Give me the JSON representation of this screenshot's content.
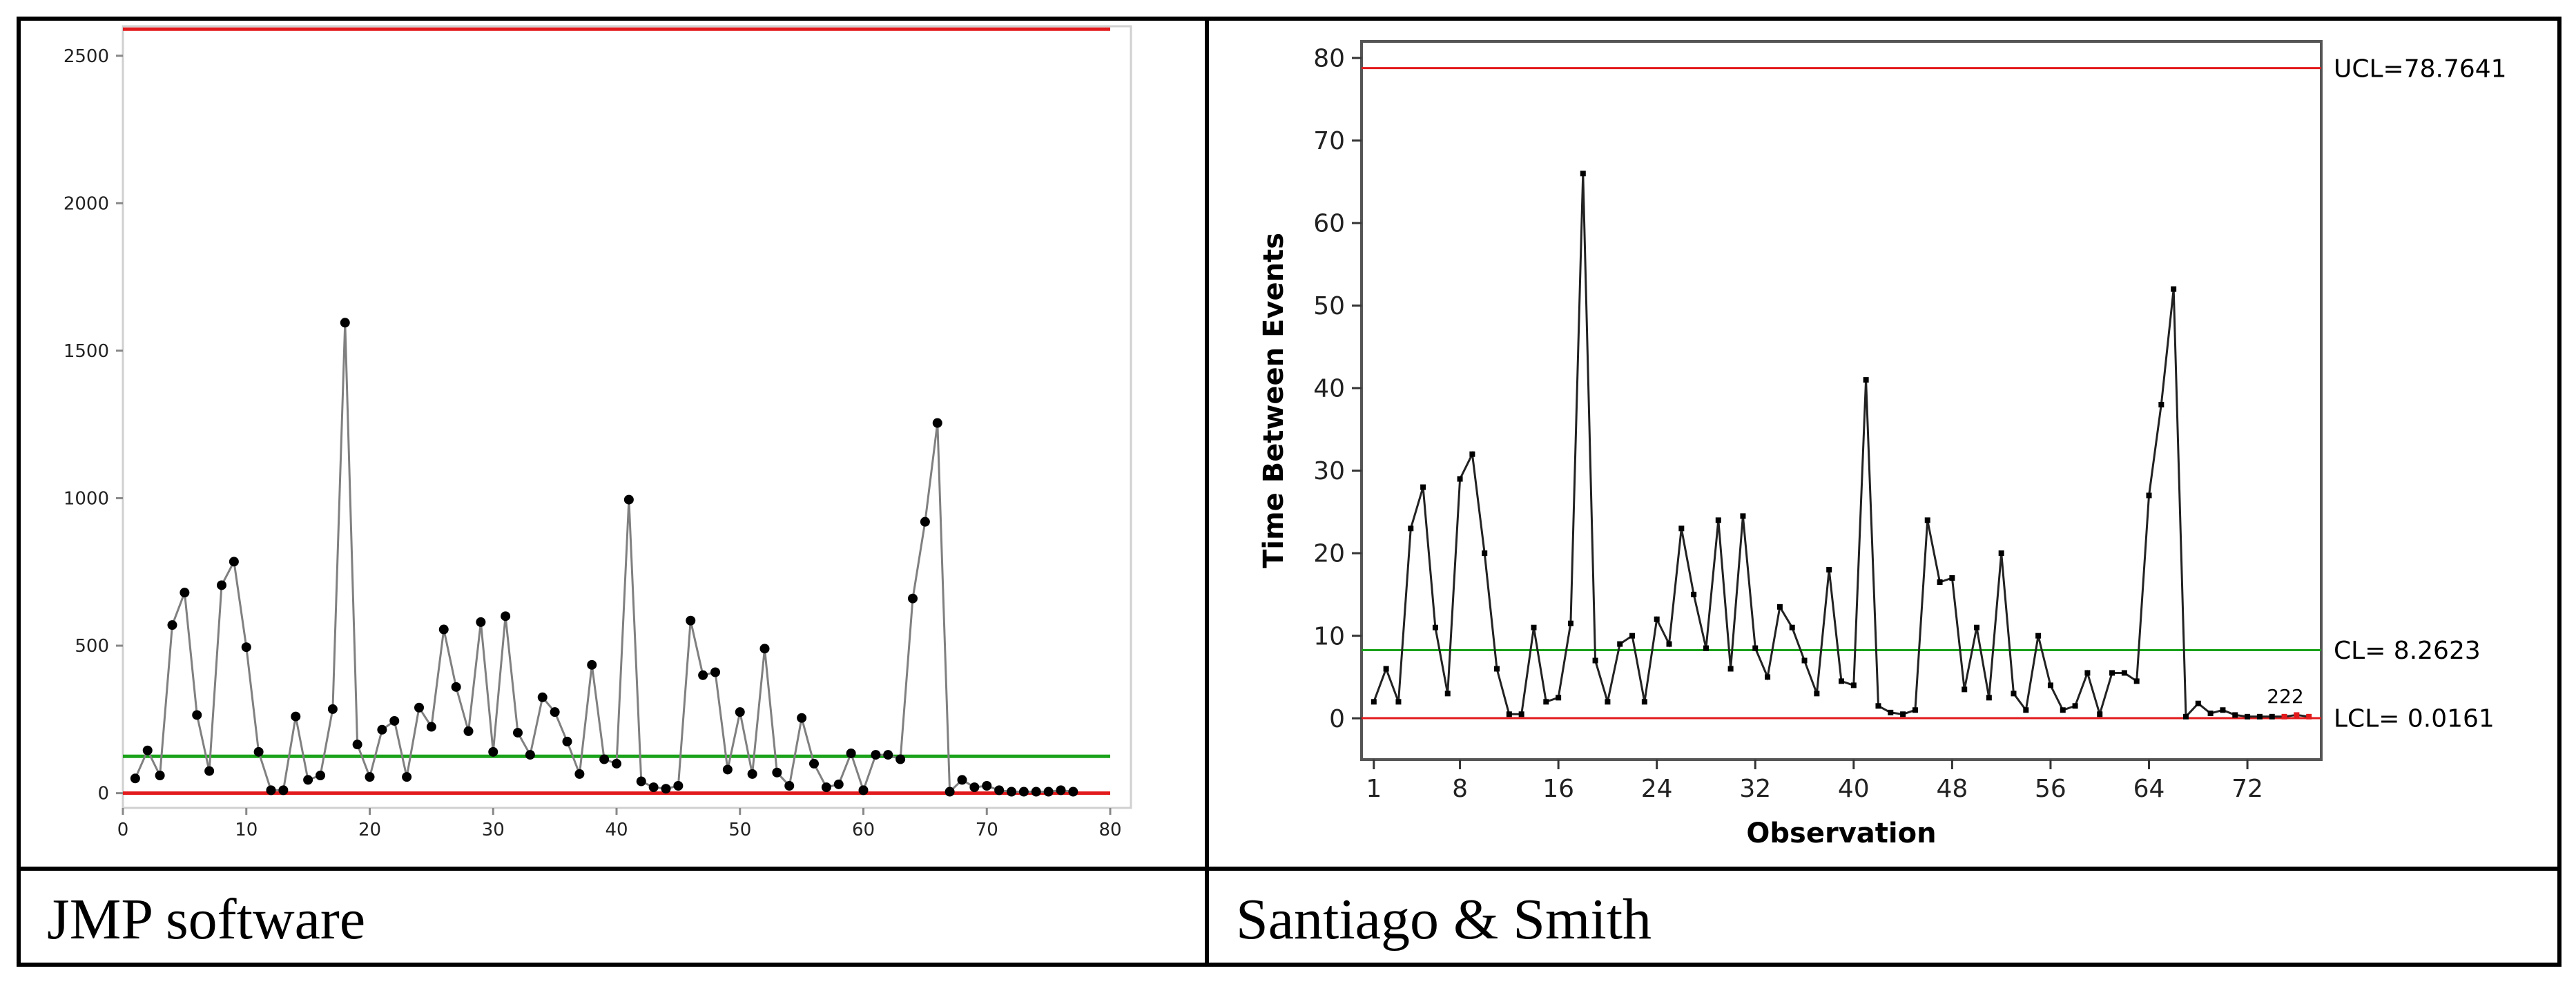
{
  "table": {
    "captions": [
      "JMP software",
      "Santiago & Smith"
    ]
  },
  "colors": {
    "ucl_lcl": "#e31a1c",
    "center_line": "#1aa21a",
    "series": "#000000",
    "connector": "#808080",
    "lcl_dots": "#e31a1c"
  },
  "chart_data": [
    {
      "type": "line",
      "title": "",
      "xlabel": "",
      "ylabel": "",
      "xlim": [
        0,
        80
      ],
      "ylim": [
        -50,
        2600
      ],
      "x_ticks": [
        0,
        10,
        20,
        30,
        40,
        50,
        60,
        70,
        80
      ],
      "y_ticks": [
        0,
        500,
        1000,
        1500,
        2000,
        2500
      ],
      "grid": false,
      "control_limits": {
        "ucl": 2590,
        "cl": 125,
        "lcl": 0
      },
      "series": [
        {
          "x": [
            1,
            2,
            3,
            4,
            5,
            6,
            7,
            8,
            9,
            10,
            11,
            12,
            13,
            14,
            15,
            16,
            17,
            18,
            19,
            20,
            21,
            22,
            23,
            24,
            25,
            26,
            27,
            28,
            29,
            30,
            31,
            32,
            33,
            34,
            35,
            36,
            37,
            38,
            39,
            40,
            41,
            42,
            43,
            44,
            45,
            46,
            47,
            48,
            49,
            50,
            51,
            52,
            53,
            54,
            55,
            56,
            57,
            58,
            59,
            60,
            61,
            62,
            63,
            64,
            65,
            66,
            67,
            68,
            69,
            70,
            71,
            72,
            73,
            74,
            75,
            76,
            77
          ],
          "values": [
            50,
            145,
            60,
            570,
            680,
            265,
            75,
            705,
            785,
            495,
            140,
            10,
            10,
            260,
            45,
            60,
            285,
            1595,
            165,
            55,
            215,
            245,
            55,
            290,
            225,
            555,
            360,
            210,
            580,
            140,
            600,
            205,
            130,
            325,
            275,
            175,
            65,
            435,
            115,
            100,
            995,
            40,
            20,
            15,
            25,
            585,
            400,
            410,
            80,
            275,
            65,
            490,
            70,
            25,
            255,
            100,
            20,
            30,
            135,
            10,
            130,
            130,
            115,
            660,
            920,
            1255,
            5,
            45,
            20,
            25,
            10,
            5,
            5,
            5,
            5,
            10,
            5
          ],
          "markers": true
        }
      ]
    },
    {
      "type": "line",
      "title": "",
      "xlabel": "Observation",
      "ylabel": "Time Between Events",
      "xlim": [
        0,
        78
      ],
      "ylim": [
        -5,
        82
      ],
      "x_ticks": [
        1,
        8,
        16,
        24,
        32,
        40,
        48,
        56,
        64,
        72
      ],
      "y_ticks": [
        0,
        10,
        20,
        30,
        40,
        50,
        60,
        70,
        80
      ],
      "grid": false,
      "control_limits": {
        "ucl": 78.7641,
        "cl": 8.2623,
        "lcl": 0.0161
      },
      "limit_labels": {
        "ucl": "UCL=78.7641",
        "cl": "CL= 8.2623",
        "lcl": "LCL= 0.0161"
      },
      "annotation": "222",
      "series": [
        {
          "x": [
            1,
            2,
            3,
            4,
            5,
            6,
            7,
            8,
            9,
            10,
            11,
            12,
            13,
            14,
            15,
            16,
            17,
            18,
            19,
            20,
            21,
            22,
            23,
            24,
            25,
            26,
            27,
            28,
            29,
            30,
            31,
            32,
            33,
            34,
            35,
            36,
            37,
            38,
            39,
            40,
            41,
            42,
            43,
            44,
            45,
            46,
            47,
            48,
            49,
            50,
            51,
            52,
            53,
            54,
            55,
            56,
            57,
            58,
            59,
            60,
            61,
            62,
            63,
            64,
            65,
            66,
            67,
            68,
            69,
            70,
            71,
            72,
            73,
            74,
            75,
            76,
            77
          ],
          "values": [
            2,
            6,
            2,
            23,
            28,
            11,
            3,
            29,
            32,
            20,
            6,
            0.5,
            0.5,
            11,
            2,
            2.5,
            11.5,
            66,
            7,
            2,
            9,
            10,
            2,
            12,
            9,
            23,
            15,
            8.5,
            24,
            6,
            24.5,
            8.5,
            5,
            13.5,
            11,
            7,
            3,
            18,
            4.5,
            4,
            41,
            1.5,
            0.7,
            0.5,
            1,
            24,
            16.5,
            17,
            3.5,
            11,
            2.5,
            20,
            3,
            1,
            10,
            4,
            1,
            1.5,
            5.5,
            0.5,
            5.5,
            5.5,
            4.5,
            27,
            38,
            52,
            0.2,
            1.8,
            0.6,
            1,
            0.4,
            0.2,
            0.2,
            0.2,
            0.2,
            0.4,
            0.2
          ],
          "markers": true,
          "lcl_flagged_from_index": 74
        }
      ]
    }
  ]
}
